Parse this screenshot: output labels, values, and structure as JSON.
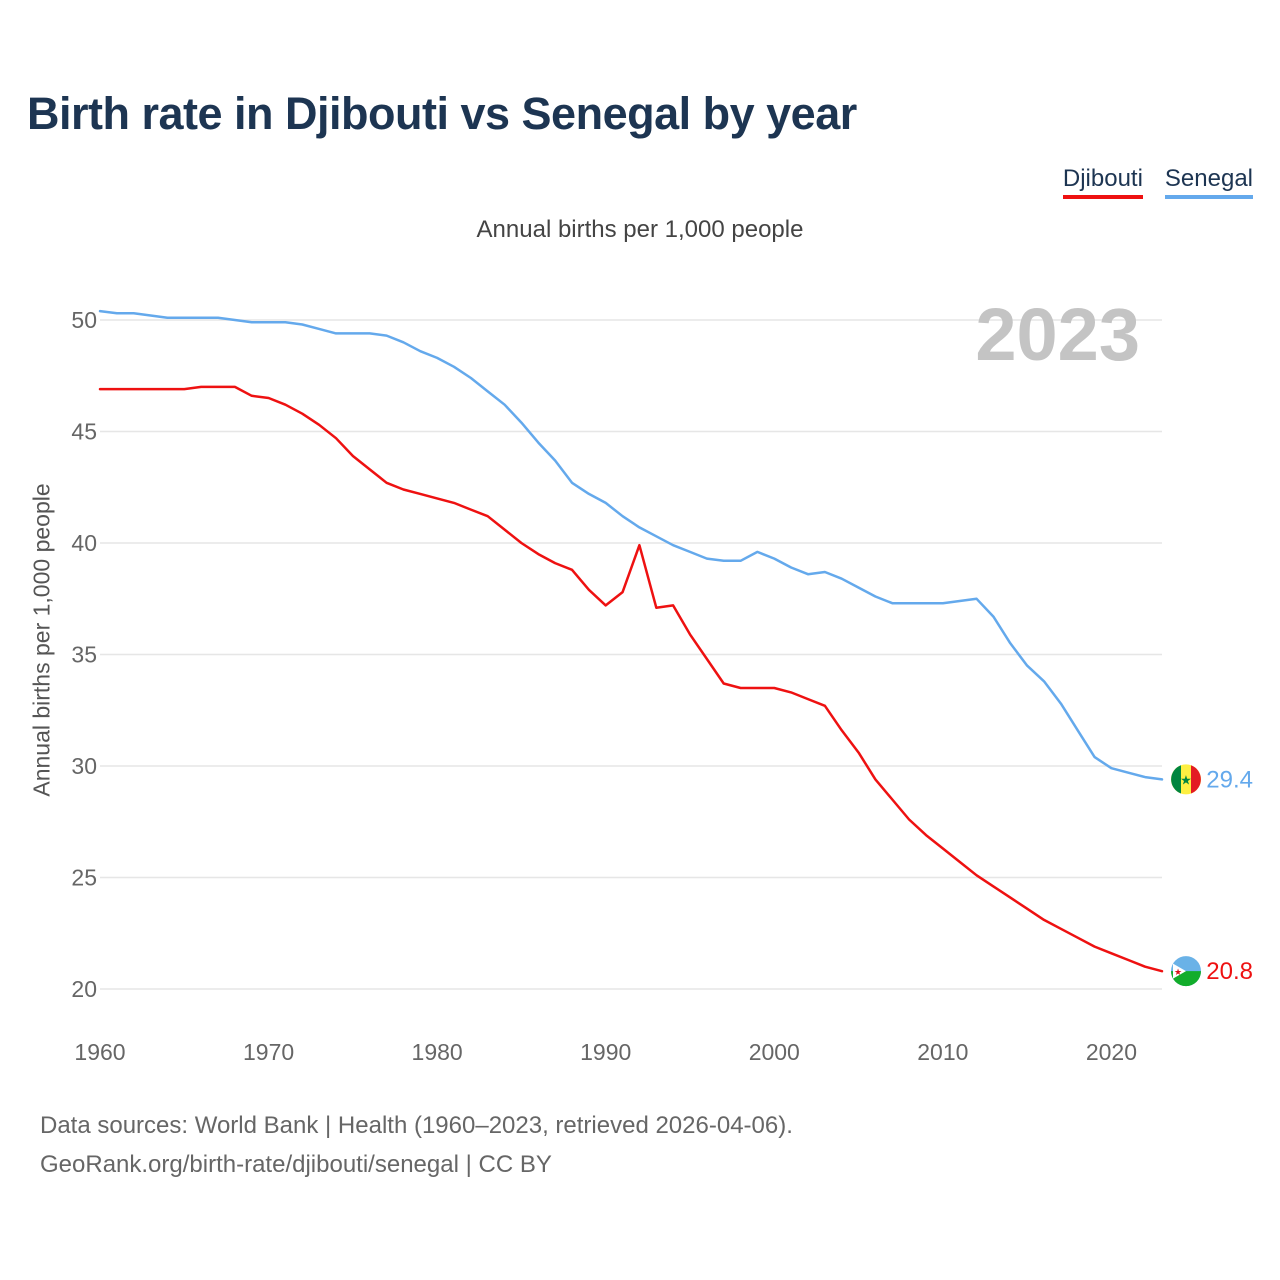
{
  "chart_data": {
    "type": "line",
    "title": "Birth rate in Djibouti vs Senegal by year",
    "subtitle": "Annual births per 1,000 people",
    "ylabel": "Annual births per 1,000 people",
    "xlabel": "",
    "year_label": "2023",
    "xlim": [
      1960,
      2023
    ],
    "ylim": [
      20,
      51
    ],
    "x_ticks": [
      1960,
      1970,
      1980,
      1990,
      2000,
      2010,
      2020
    ],
    "y_ticks": [
      20,
      25,
      30,
      35,
      40,
      45,
      50
    ],
    "grid": true,
    "legend_position": "top-right",
    "x": [
      1960,
      1961,
      1962,
      1963,
      1964,
      1965,
      1966,
      1967,
      1968,
      1969,
      1970,
      1971,
      1972,
      1973,
      1974,
      1975,
      1976,
      1977,
      1978,
      1979,
      1980,
      1981,
      1982,
      1983,
      1984,
      1985,
      1986,
      1987,
      1988,
      1989,
      1990,
      1991,
      1992,
      1993,
      1994,
      1995,
      1996,
      1997,
      1998,
      1999,
      2000,
      2001,
      2002,
      2003,
      2004,
      2005,
      2006,
      2007,
      2008,
      2009,
      2010,
      2011,
      2012,
      2013,
      2014,
      2015,
      2016,
      2017,
      2018,
      2019,
      2020,
      2021,
      2022,
      2023
    ],
    "series": [
      {
        "name": "Djibouti",
        "color": "#ee1111",
        "end_label": "20.8",
        "values": [
          46.9,
          46.9,
          46.9,
          46.9,
          46.9,
          46.9,
          47.0,
          47.0,
          47.0,
          46.6,
          46.5,
          46.2,
          45.8,
          45.3,
          44.7,
          43.9,
          43.3,
          42.7,
          42.4,
          42.2,
          42.0,
          41.8,
          41.5,
          41.2,
          40.6,
          40.0,
          39.5,
          39.1,
          38.8,
          37.9,
          37.2,
          37.8,
          39.9,
          37.1,
          37.2,
          35.9,
          34.8,
          33.7,
          33.5,
          33.5,
          33.5,
          33.3,
          33.0,
          32.7,
          31.6,
          30.6,
          29.4,
          28.5,
          27.6,
          26.9,
          26.3,
          25.7,
          25.1,
          24.6,
          24.1,
          23.6,
          23.1,
          22.7,
          22.3,
          21.9,
          21.6,
          21.3,
          21.0,
          20.8
        ]
      },
      {
        "name": "Senegal",
        "color": "#64a9ec",
        "end_label": "29.4",
        "values": [
          50.4,
          50.3,
          50.3,
          50.2,
          50.1,
          50.1,
          50.1,
          50.1,
          50.0,
          49.9,
          49.9,
          49.9,
          49.8,
          49.6,
          49.4,
          49.4,
          49.4,
          49.3,
          49.0,
          48.6,
          48.3,
          47.9,
          47.4,
          46.8,
          46.2,
          45.4,
          44.5,
          43.7,
          42.7,
          42.2,
          41.8,
          41.2,
          40.7,
          40.3,
          39.9,
          39.6,
          39.3,
          39.2,
          39.2,
          39.6,
          39.3,
          38.9,
          38.6,
          38.7,
          38.4,
          38.0,
          37.6,
          37.3,
          37.3,
          37.3,
          37.3,
          37.4,
          37.5,
          36.7,
          35.5,
          34.5,
          33.8,
          32.8,
          31.6,
          30.4,
          29.9,
          29.7,
          29.5,
          29.4
        ]
      }
    ]
  },
  "source": {
    "line1": "Data sources: World Bank | Health (1960–2023, retrieved 2026-04-06).",
    "line2": "GeoRank.org/birth-rate/djibouti/senegal | CC BY"
  }
}
